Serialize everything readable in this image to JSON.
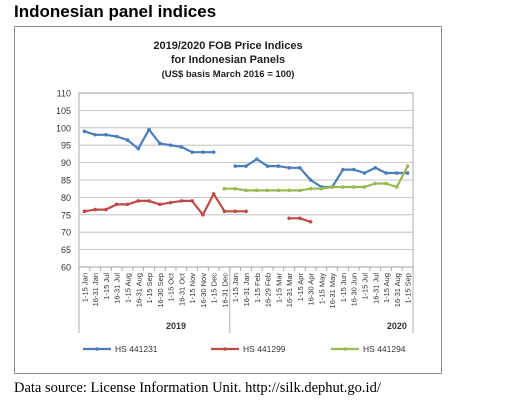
{
  "heading": "Indonesian panel indices",
  "source": "Data source: License Information Unit. http://silk.dephut.go.id/",
  "chart_data": {
    "type": "line",
    "title": [
      "2019/2020 FOB Price Indices",
      "for Indonesian Panels",
      "(US$ basis March 2016 = 100)"
    ],
    "xlabel": "",
    "ylabel": "",
    "ylim": [
      60,
      110
    ],
    "yticks": [
      60,
      65,
      70,
      75,
      80,
      85,
      90,
      95,
      100,
      105,
      110
    ],
    "grid": true,
    "legend_position": "bottom",
    "year_labels": [
      {
        "label": "2019",
        "from": 0,
        "to": 17
      },
      {
        "label": "2020",
        "from": 18,
        "to": 40
      }
    ],
    "categories": [
      "1-15 Jan",
      "16-31 Jan",
      "1-15 Jul",
      "16-31 Jul",
      "1-15 Aug",
      "16-31 Aug",
      "1-15 Sep",
      "16-30 Sep",
      "1-15 Oct",
      "16-31 Oct",
      "1-15 Nov",
      "16-30 Nov",
      "1-15 Dec",
      "16-31 Dec",
      "1-15 Jan",
      "16-31 Jan",
      "1-15 Feb",
      "16-29 Feb",
      "1-15 Mar",
      "16-31 Mar",
      "1-15 Apr",
      "16-30 Apr",
      "1-15 May",
      "16-31 May",
      "1-15 Jun",
      "16-30 Jun",
      "1-15 Jul",
      "16-31 Jul",
      "1-15 Aug",
      "16-31 Aug",
      "1-15 Sep"
    ],
    "tick_labels": [
      "1-15 Jan",
      "16-31 Jan",
      "1-15 Jul",
      "16-31 Jul",
      "1-15 Aug",
      "16-31 Aug",
      "1-15 Sep",
      "16-30 Sep",
      "1-15 Oct",
      "16-31 Oct",
      "1-15 Nov",
      "16-30 Nov",
      "1-15 Dec",
      "16-31 Dec",
      "1-15 Jan",
      "16-31 Jan",
      "1-15 Feb",
      "16-29 Feb",
      "1-15 Mar",
      "16-31 Mar",
      "1-15 Apr",
      "16-30 Apr",
      "1-15 May",
      "16-31 May",
      "1-15 Jun",
      "16-30 Jun",
      "1-15 Jul",
      "16-31 Jul",
      "1-15 Aug",
      "16-31 Aug",
      "1-15 Sep"
    ],
    "series": [
      {
        "name": "HS 441231",
        "color": "#4a7ebb",
        "values": [
          99,
          98,
          98,
          97.5,
          96.5,
          94,
          99.5,
          95.5,
          95,
          94.5,
          93,
          93,
          93,
          null,
          89,
          89,
          91,
          89,
          89,
          88.5,
          88.5,
          85,
          83,
          83,
          88,
          88,
          87,
          88.5,
          87,
          87,
          87
        ]
      },
      {
        "name": "HS 441299",
        "color": "#be4b48",
        "values": [
          76,
          76.5,
          76.5,
          78,
          78,
          79,
          79,
          78,
          78.5,
          79,
          79,
          75,
          81,
          76,
          76,
          76,
          null,
          null,
          null,
          74,
          74,
          73,
          null,
          null,
          null,
          null,
          null,
          null,
          null,
          null,
          null
        ]
      },
      {
        "name": "HS 441294",
        "color": "#98b954",
        "values": [
          null,
          null,
          null,
          null,
          null,
          null,
          null,
          null,
          null,
          null,
          null,
          null,
          null,
          82.5,
          82.5,
          82,
          82,
          82,
          82,
          82,
          82,
          82.5,
          82.5,
          83,
          83,
          83,
          83,
          84,
          84,
          83,
          89
        ]
      }
    ]
  }
}
